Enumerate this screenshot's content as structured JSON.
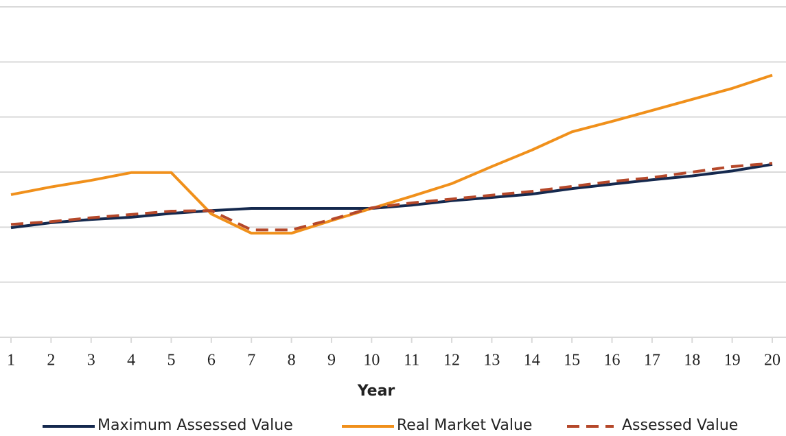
{
  "chart_data": {
    "type": "line",
    "x_label": "Year",
    "categories": [
      "1",
      "2",
      "3",
      "4",
      "5",
      "6",
      "7",
      "8",
      "9",
      "10",
      "11",
      "12",
      "13",
      "14",
      "15",
      "16",
      "17",
      "18",
      "19",
      "20"
    ],
    "series": [
      {
        "name": "Maximum Assessed Value",
        "color": "#15294e",
        "dash": false,
        "values": [
          1.99,
          2.08,
          2.14,
          2.18,
          2.25,
          2.3,
          2.34,
          2.34,
          2.34,
          2.34,
          2.4,
          2.48,
          2.54,
          2.6,
          2.7,
          2.78,
          2.86,
          2.93,
          3.02,
          3.14
        ]
      },
      {
        "name": "Real Market Value",
        "color": "#f0901b",
        "dash": false,
        "values": [
          2.59,
          2.73,
          2.85,
          2.99,
          2.99,
          2.24,
          1.89,
          1.89,
          2.12,
          2.34,
          2.56,
          2.79,
          3.1,
          3.4,
          3.73,
          3.92,
          4.12,
          4.32,
          4.52,
          4.76
        ]
      },
      {
        "name": "Assessed Value",
        "color": "#b5482a",
        "dash": true,
        "values": [
          2.05,
          2.1,
          2.17,
          2.23,
          2.29,
          2.3,
          1.95,
          1.95,
          2.14,
          2.35,
          2.44,
          2.51,
          2.58,
          2.65,
          2.74,
          2.83,
          2.9,
          3.0,
          3.1,
          3.16
        ]
      }
    ],
    "ylim": [
      0,
      6
    ],
    "yticks": [
      0,
      1,
      2,
      3,
      4,
      5,
      6
    ],
    "grid": true,
    "legend": "bottom"
  }
}
